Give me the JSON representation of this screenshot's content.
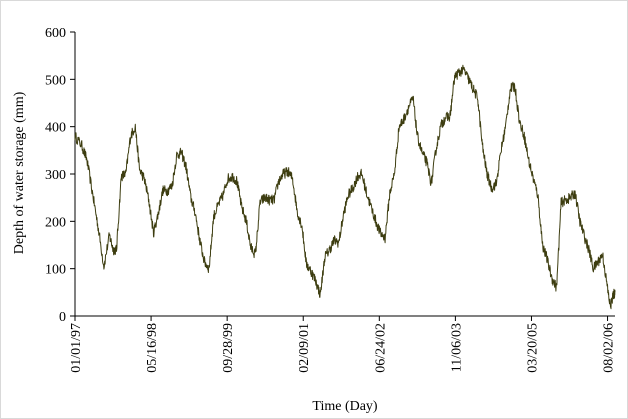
{
  "chart_data": {
    "type": "line",
    "title": "",
    "xlabel": "Time (Day)",
    "ylabel": "Depth of water storage  (mm)",
    "x_type": "date",
    "xlim": [
      "1997-01-01",
      "2006-09-20"
    ],
    "ylim": [
      0,
      600
    ],
    "y_ticks": [
      0,
      100,
      200,
      300,
      400,
      500,
      600
    ],
    "x_ticks": [
      {
        "date": "1997-01-01",
        "label": "01/01/97"
      },
      {
        "date": "1998-05-16",
        "label": "05/16/98"
      },
      {
        "date": "1999-09-28",
        "label": "09/28/99"
      },
      {
        "date": "2001-02-09",
        "label": "02/09/01"
      },
      {
        "date": "2002-06-24",
        "label": "06/24/02"
      },
      {
        "date": "2003-11-06",
        "label": "11/06/03"
      },
      {
        "date": "2005-03-20",
        "label": "03/20/05"
      },
      {
        "date": "2006-08-02",
        "label": "08/02/06"
      }
    ],
    "grid": false,
    "legend": false,
    "line_color": "#3d3d10",
    "series": [
      {
        "x": [
          "1997-01-01",
          "1997-02-15",
          "1997-03-20",
          "1997-05-01",
          "1997-06-01",
          "1997-07-10",
          "1997-08-15",
          "1997-09-10",
          "1997-10-01",
          "1997-11-01",
          "1997-12-01",
          "1998-01-01",
          "1998-02-01",
          "1998-03-01",
          "1998-04-01",
          "1998-05-01",
          "1998-06-01",
          "1998-07-01",
          "1998-08-01",
          "1998-09-01",
          "1998-10-01",
          "1998-11-01",
          "1998-12-01",
          "1999-01-01",
          "1999-02-01",
          "1999-03-01",
          "1999-04-01",
          "1999-05-01",
          "1999-06-01",
          "1999-07-01",
          "1999-08-01",
          "1999-09-01",
          "1999-10-01",
          "1999-11-01",
          "1999-12-01",
          "2000-01-01",
          "2000-02-01",
          "2000-03-01",
          "2000-04-01",
          "2000-05-01",
          "2000-06-01",
          "2000-07-01",
          "2000-08-01",
          "2000-09-01",
          "2000-10-01",
          "2000-11-01",
          "2000-12-01",
          "2001-01-01",
          "2001-02-01",
          "2001-03-01",
          "2001-04-01",
          "2001-05-01",
          "2001-06-01",
          "2001-07-01",
          "2001-08-01",
          "2001-09-01",
          "2001-10-01",
          "2001-11-01",
          "2001-12-01",
          "2002-01-01",
          "2002-02-01",
          "2002-03-01",
          "2002-04-01",
          "2002-05-01",
          "2002-06-01",
          "2002-07-01",
          "2002-08-01",
          "2002-09-01",
          "2002-10-01",
          "2002-11-01",
          "2002-12-01",
          "2003-01-01",
          "2003-02-01",
          "2003-03-01",
          "2003-04-01",
          "2003-05-01",
          "2003-06-01",
          "2003-07-01",
          "2003-08-01",
          "2003-09-01",
          "2003-10-01",
          "2003-11-01",
          "2003-12-01",
          "2004-01-01",
          "2004-02-01",
          "2004-03-01",
          "2004-04-01",
          "2004-05-01",
          "2004-06-01",
          "2004-07-01",
          "2004-08-01",
          "2004-09-01",
          "2004-10-01",
          "2004-11-01",
          "2004-12-01",
          "2005-01-01",
          "2005-02-01",
          "2005-03-01",
          "2005-04-01",
          "2005-05-01",
          "2005-06-01",
          "2005-07-01",
          "2005-08-01",
          "2005-09-01",
          "2005-10-01",
          "2005-11-01",
          "2005-12-01",
          "2006-01-01",
          "2006-02-01",
          "2006-03-01",
          "2006-04-01",
          "2006-05-01",
          "2006-06-01",
          "2006-07-01",
          "2006-08-01",
          "2006-08-20",
          "2006-09-10",
          "2006-09-20"
        ],
        "y": [
          380,
          360,
          330,
          250,
          190,
          105,
          170,
          140,
          140,
          295,
          300,
          380,
          400,
          310,
          290,
          245,
          175,
          215,
          265,
          265,
          275,
          340,
          345,
          315,
          250,
          220,
          160,
          115,
          100,
          210,
          235,
          255,
          290,
          295,
          285,
          230,
          200,
          145,
          130,
          240,
          250,
          245,
          245,
          285,
          300,
          305,
          290,
          220,
          190,
          110,
          95,
          75,
          45,
          125,
          140,
          160,
          155,
          215,
          255,
          270,
          295,
          300,
          260,
          230,
          200,
          175,
          165,
          260,
          300,
          400,
          415,
          440,
          460,
          380,
          345,
          325,
          280,
          350,
          400,
          420,
          420,
          505,
          515,
          520,
          500,
          480,
          460,
          360,
          300,
          270,
          280,
          350,
          400,
          480,
          485,
          410,
          380,
          330,
          290,
          255,
          150,
          120,
          80,
          60,
          240,
          245,
          250,
          260,
          200,
          170,
          140,
          100,
          115,
          130,
          60,
          20,
          45,
          50
        ]
      }
    ]
  }
}
